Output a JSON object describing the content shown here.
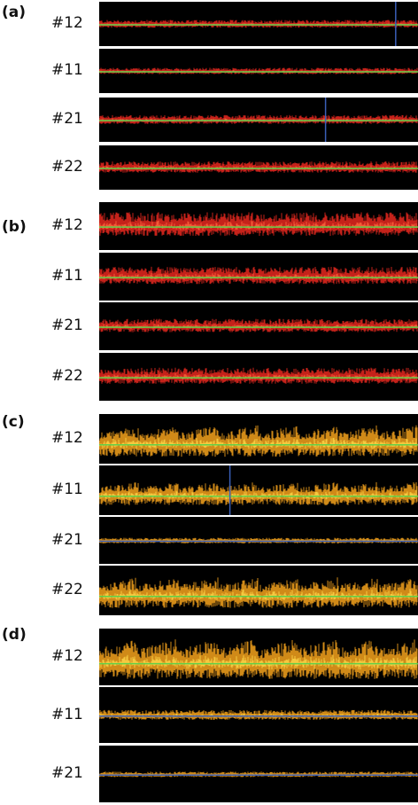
{
  "panels": [
    {
      "label": "(a)",
      "palette": "red",
      "tracks": [
        {
          "label": "#12",
          "amp": 0.22,
          "blue_line_at": 0.93
        },
        {
          "label": "#11",
          "amp": 0.18
        },
        {
          "label": "#21",
          "amp": 0.25,
          "blue_line_at": 0.71
        },
        {
          "label": "#22",
          "amp": 0.32
        }
      ]
    },
    {
      "label": "(b)",
      "palette": "red",
      "tracks": [
        {
          "label": "#12",
          "amp": 0.62
        },
        {
          "label": "#11",
          "amp": 0.45
        },
        {
          "label": "#21",
          "amp": 0.35
        },
        {
          "label": "#22",
          "amp": 0.42
        }
      ]
    },
    {
      "label": "(c)",
      "palette": "orange",
      "tracks": [
        {
          "label": "#12",
          "amp": 0.8
        },
        {
          "label": "#11",
          "amp": 0.6,
          "blue_line_at": 0.41
        },
        {
          "label": "#21",
          "amp": 0.15
        },
        {
          "label": "#22",
          "amp": 0.78
        }
      ]
    },
    {
      "label": "(d)",
      "palette": "orange",
      "tracks": [
        {
          "label": "#12",
          "amp": 0.9
        },
        {
          "label": "#11",
          "amp": 0.22
        },
        {
          "label": "#21",
          "amp": 0.12
        }
      ]
    }
  ],
  "colors": {
    "red": "#e8281e",
    "orange": "#f5a21c",
    "yellow": "#ffd84a",
    "green_line": "#5fd04a",
    "blue_line": "#3a5fb8"
  }
}
